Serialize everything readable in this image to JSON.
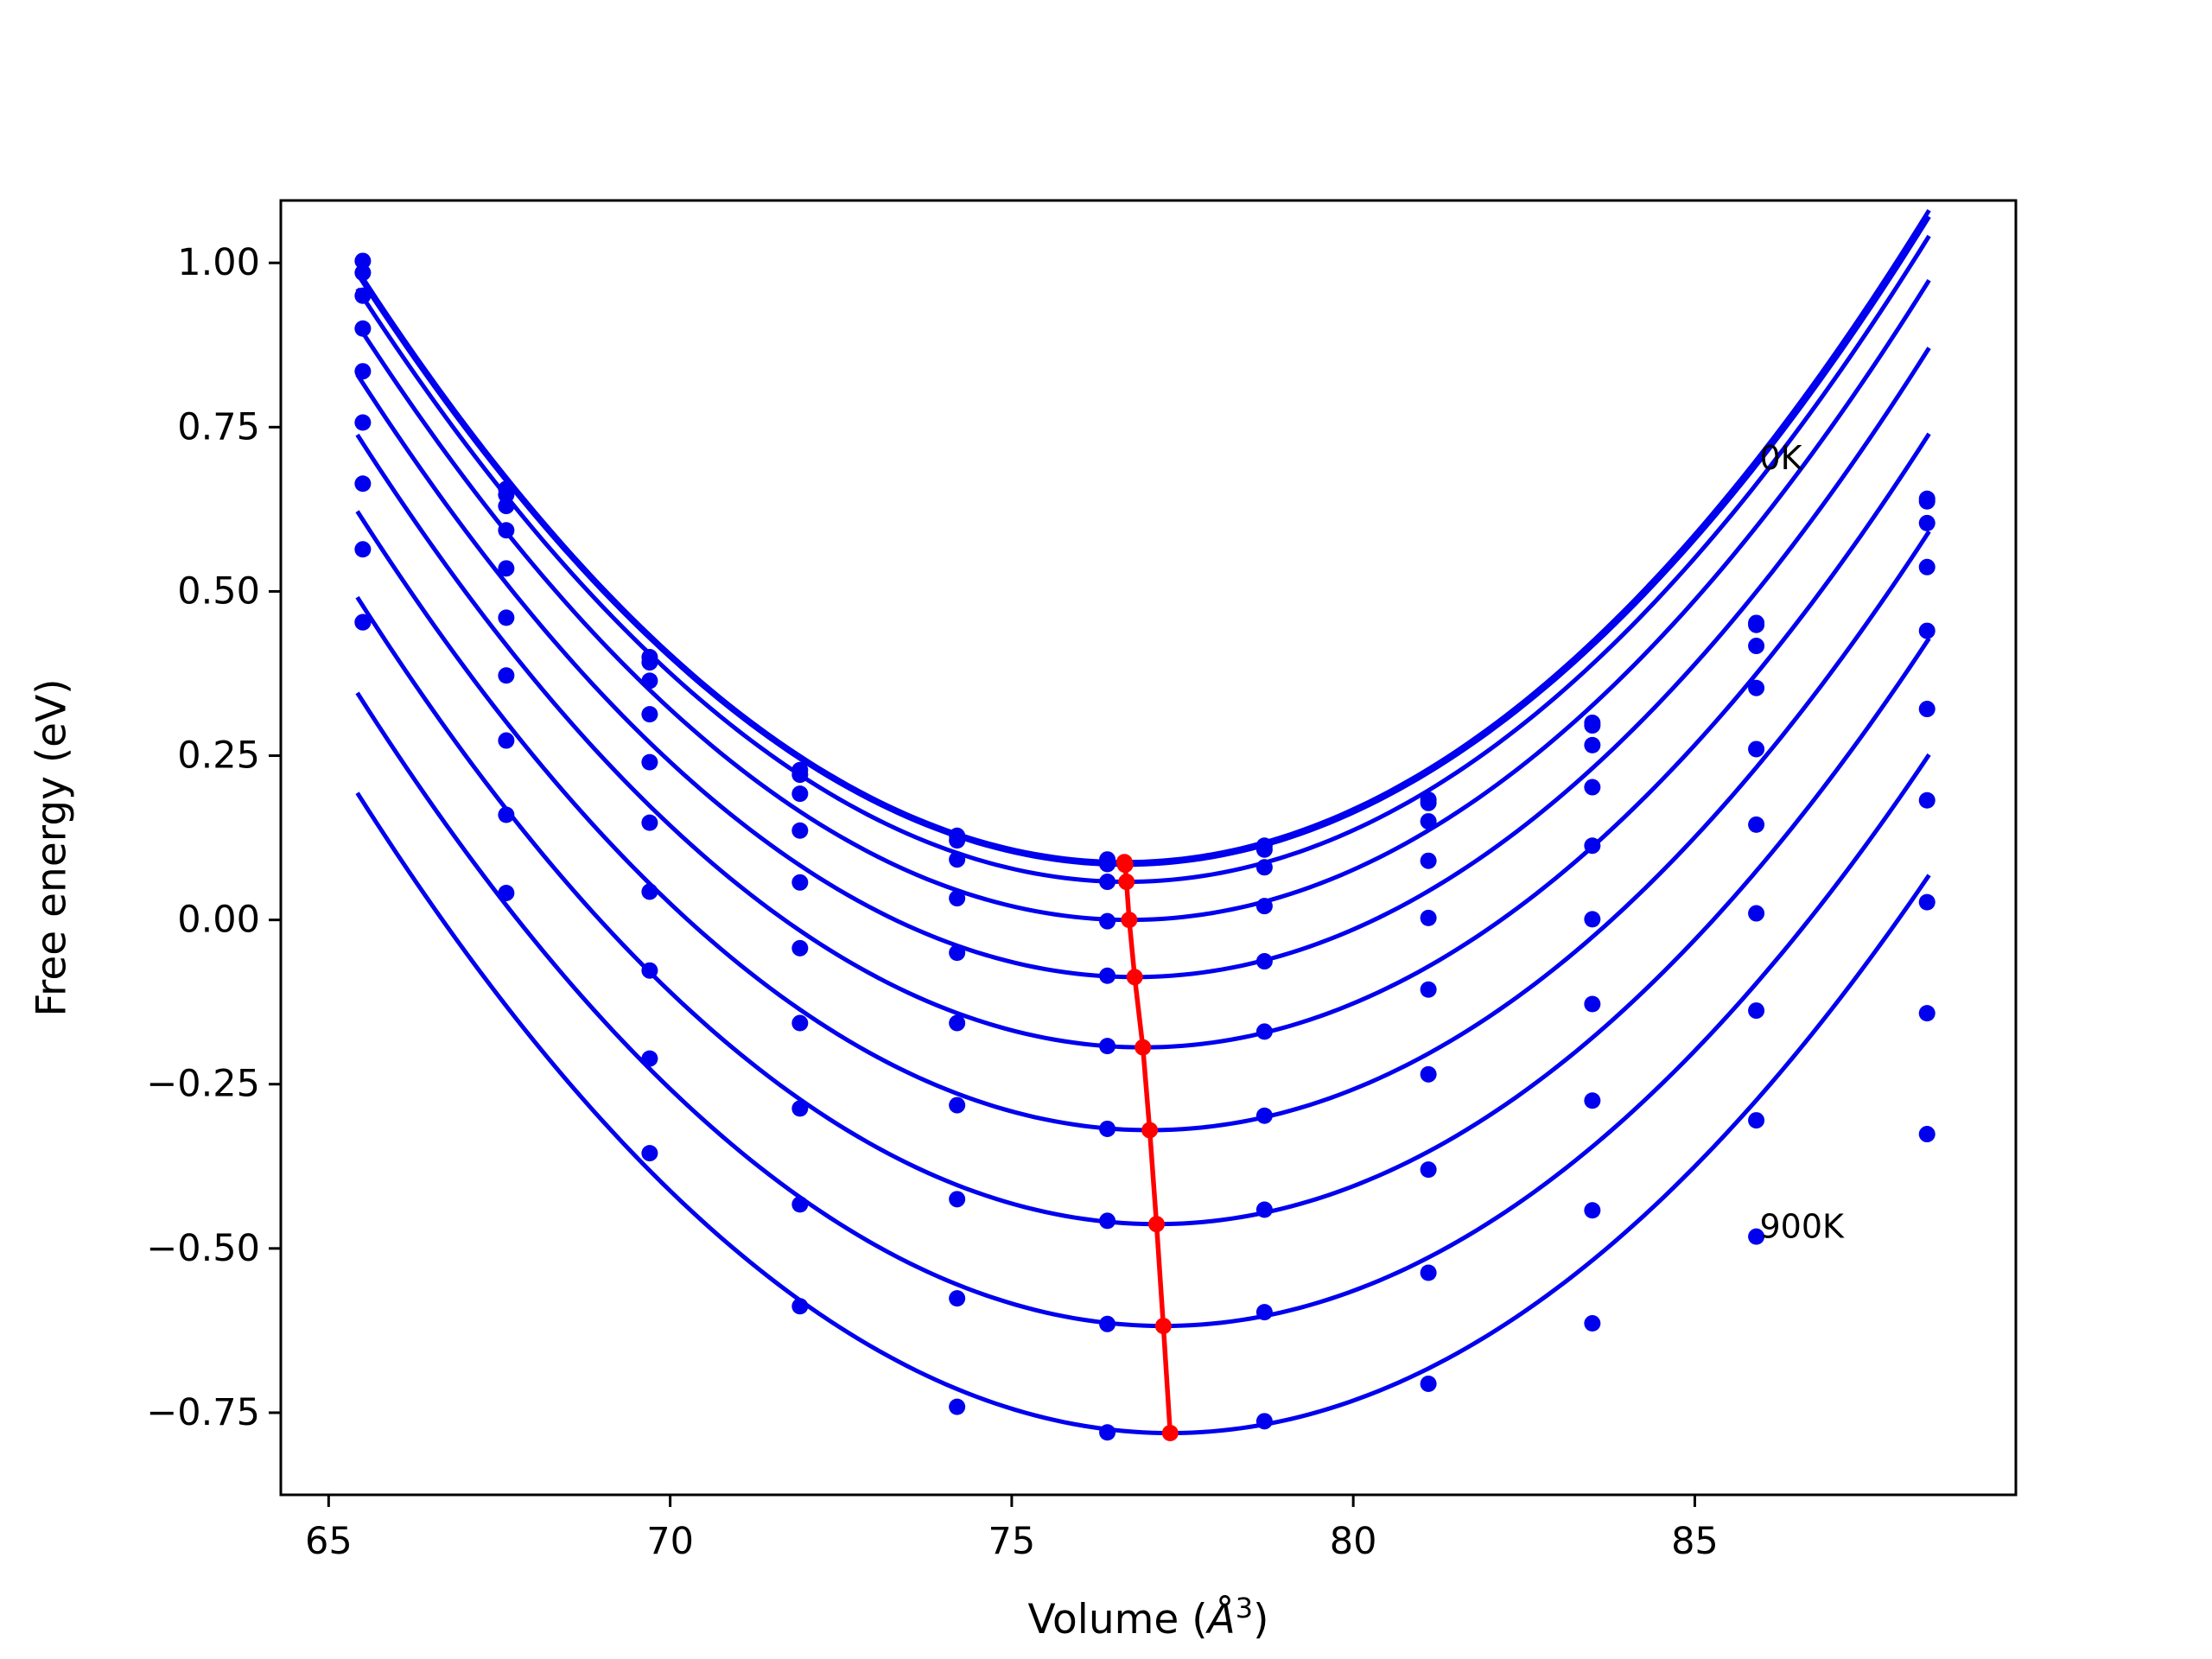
{
  "chart_data": {
    "type": "line",
    "xlabel": "Volume (",
    "xlabel_sym": "Å",
    "xlabel_sup": "3",
    "xlabel_close": ")",
    "ylabel": "Free energy (eV)",
    "xlim": [
      64.3,
      89.7
    ],
    "ylim": [
      -0.875,
      1.095
    ],
    "xticks": [
      65,
      70,
      75,
      80,
      85
    ],
    "xtick_labels": [
      "65",
      "70",
      "75",
      "80",
      "85"
    ],
    "yticks": [
      1.0,
      0.75,
      0.5,
      0.25,
      0.0,
      -0.25,
      -0.5,
      -0.75
    ],
    "ytick_labels": [
      "1.00",
      "0.75",
      "0.50",
      "0.25",
      "0.00",
      "−0.25",
      "−0.50",
      "−0.75"
    ],
    "grid": false,
    "annotations": [
      {
        "text": "0K",
        "x": 85.95,
        "y": 0.7
      },
      {
        "text": "900K",
        "x": 85.95,
        "y": -0.47
      }
    ],
    "volumes": [
      65.5,
      67.6,
      69.7,
      71.9,
      74.2,
      76.4,
      78.7,
      81.1,
      83.5,
      85.9,
      88.4
    ],
    "series": [
      {
        "points": [
          1.003,
          0.656,
          0.4,
          0.228,
          0.128,
          0.092,
          0.113,
          0.183,
          0.3,
          0.452,
          0.641
        ],
        "fit": {
          "a": 0.00715,
          "v0": 76.65,
          "b": 0.088
        }
      },
      {
        "points": [
          0.985,
          0.647,
          0.392,
          0.221,
          0.121,
          0.085,
          0.107,
          0.178,
          0.296,
          0.449,
          0.637
        ],
        "fit": {
          "a": 0.00712,
          "v0": 76.66,
          "b": 0.084
        }
      },
      {
        "points": [
          0.95,
          0.63,
          0.364,
          0.192,
          0.092,
          0.058,
          0.08,
          0.15,
          0.266,
          0.417,
          0.604
        ],
        "fit": {
          "a": 0.00712,
          "v0": 76.68,
          "b": 0.058
        }
      },
      {
        "points": [
          0.9,
          0.593,
          0.313,
          0.136,
          0.033,
          -0.002,
          0.021,
          0.09,
          0.202,
          0.353,
          0.537
        ],
        "fit": {
          "a": 0.0071,
          "v0": 76.72,
          "b": 0.0
        }
      },
      {
        "points": [
          0.835,
          0.535,
          0.24,
          0.057,
          -0.05,
          -0.085,
          -0.063,
          0.003,
          0.113,
          0.26,
          0.44
        ],
        "fit": {
          "a": 0.00708,
          "v0": 76.8,
          "b": -0.087
        }
      },
      {
        "points": [
          0.757,
          0.46,
          0.148,
          -0.043,
          -0.157,
          -0.192,
          -0.17,
          -0.106,
          0.001,
          0.145,
          0.321
        ],
        "fit": {
          "a": 0.00705,
          "v0": 76.92,
          "b": -0.194
        }
      },
      {
        "points": [
          0.664,
          0.372,
          0.043,
          -0.157,
          -0.282,
          -0.318,
          -0.298,
          -0.235,
          -0.128,
          0.01,
          0.182
        ],
        "fit": {
          "a": 0.007,
          "v0": 77.02,
          "b": -0.32
        }
      },
      {
        "points": [
          0.564,
          0.273,
          -0.077,
          -0.287,
          -0.425,
          -0.458,
          -0.441,
          -0.38,
          -0.275,
          -0.138,
          0.027
        ],
        "fit": {
          "a": 0.00697,
          "v0": 77.12,
          "b": -0.463
        }
      },
      {
        "points": [
          0.453,
          0.16,
          -0.211,
          -0.433,
          -0.576,
          -0.615,
          -0.597,
          -0.537,
          -0.442,
          -0.305,
          -0.142
        ],
        "fit": {
          "a": 0.00692,
          "v0": 77.22,
          "b": -0.618
        }
      },
      {
        "points": [
          0.453,
          0.041,
          -0.355,
          -0.588,
          -0.741,
          -0.78,
          -0.763,
          -0.706,
          -0.614,
          -0.482,
          -0.326
        ],
        "fit": {
          "a": 0.00688,
          "v0": 77.32,
          "b": -0.781
        }
      }
    ],
    "minima_line": {
      "x": [
        76.65,
        76.66,
        76.68,
        76.72,
        76.8,
        76.92,
        77.02,
        77.12,
        77.22,
        77.32
      ],
      "y": [
        0.088,
        0.084,
        0.058,
        0.0,
        -0.087,
        -0.194,
        -0.32,
        -0.463,
        -0.618,
        -0.781
      ]
    },
    "colors": {
      "curve": "#0000ee",
      "minima": "#ff0000"
    }
  }
}
